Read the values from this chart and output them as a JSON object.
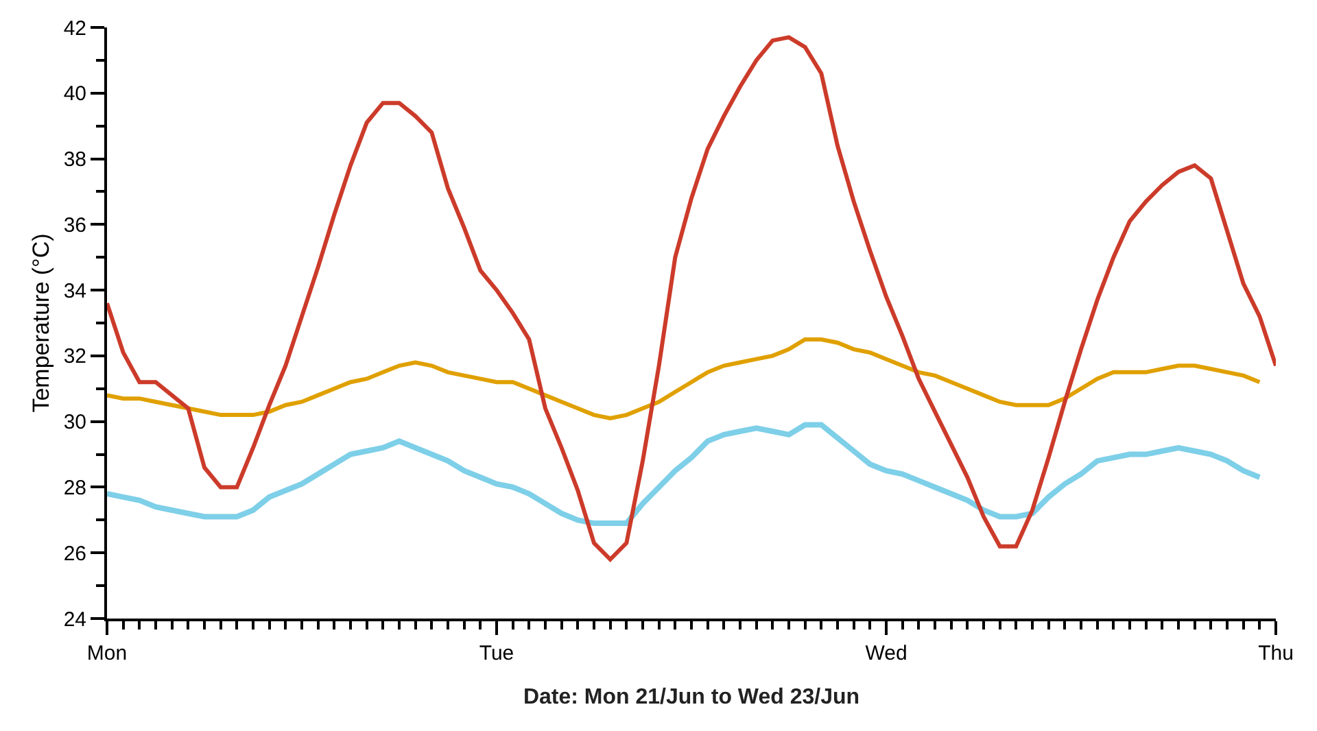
{
  "chart_data": {
    "type": "line",
    "xlabel": "Date: Mon 21/Jun to Wed 23/Jun",
    "ylabel": "Temperature (°C)",
    "categories": [
      "Mon",
      null,
      null,
      null,
      null,
      null,
      null,
      null,
      null,
      null,
      null,
      null,
      null,
      null,
      null,
      null,
      null,
      null,
      null,
      null,
      null,
      null,
      null,
      null,
      "Tue",
      null,
      null,
      null,
      null,
      null,
      null,
      null,
      null,
      null,
      null,
      null,
      null,
      null,
      null,
      null,
      null,
      null,
      null,
      null,
      null,
      null,
      null,
      null,
      "Wed",
      null,
      null,
      null,
      null,
      null,
      null,
      null,
      null,
      null,
      null,
      null,
      null,
      null,
      null,
      null,
      null,
      null,
      null,
      null,
      null,
      null,
      null,
      null,
      "Thu"
    ],
    "ylim": [
      24,
      42
    ],
    "yticks": [
      24,
      {
        "value": 25,
        "label": null
      },
      26,
      {
        "value": 27,
        "label": null
      },
      28,
      {
        "value": 29,
        "label": null
      },
      30,
      {
        "value": 31,
        "label": null
      },
      32,
      {
        "value": 33,
        "label": null
      },
      34,
      {
        "value": 35,
        "label": null
      },
      36,
      {
        "value": 37,
        "label": null
      },
      38,
      {
        "value": 39,
        "label": null
      },
      40,
      {
        "value": 41,
        "label": null
      },
      42
    ],
    "grid": false,
    "marker": "none",
    "line_style": "solid",
    "series": [
      {
        "color": "#e0a000",
        "values": [
          30.8,
          30.7,
          30.7,
          30.6,
          30.5,
          30.4,
          30.3,
          30.2,
          30.2,
          30.2,
          30.3,
          30.5,
          30.6,
          30.8,
          31.0,
          31.2,
          31.3,
          31.5,
          31.7,
          31.8,
          31.7,
          31.5,
          31.4,
          31.3,
          31.2,
          31.2,
          31.0,
          30.8,
          30.6,
          30.4,
          30.2,
          30.1,
          30.2,
          30.4,
          30.6,
          30.9,
          31.2,
          31.5,
          31.7,
          31.8,
          31.9,
          32.0,
          32.2,
          32.5,
          32.5,
          32.4,
          32.2,
          32.1,
          31.9,
          31.7,
          31.5,
          31.4,
          31.2,
          31.0,
          30.8,
          30.6,
          30.5,
          30.5,
          30.5,
          30.7,
          31.0,
          31.3,
          31.5,
          31.5,
          31.5,
          31.6,
          31.7,
          31.7,
          31.6,
          31.5,
          31.4,
          31.2,
          null
        ]
      },
      {
        "color": "#7ecfe8",
        "values": [
          27.8,
          27.7,
          27.6,
          27.4,
          27.3,
          27.2,
          27.1,
          27.1,
          27.1,
          27.3,
          27.7,
          27.9,
          28.1,
          28.4,
          28.7,
          29.0,
          29.1,
          29.2,
          29.4,
          29.2,
          29.0,
          28.8,
          28.5,
          28.3,
          28.1,
          28.0,
          27.8,
          27.5,
          27.2,
          27.0,
          26.9,
          26.9,
          26.9,
          27.5,
          28.0,
          28.5,
          28.9,
          29.4,
          29.6,
          29.7,
          29.8,
          29.7,
          29.6,
          29.9,
          29.9,
          29.5,
          29.1,
          28.7,
          28.5,
          28.4,
          28.2,
          28.0,
          27.8,
          27.6,
          27.3,
          27.1,
          27.1,
          27.2,
          27.7,
          28.1,
          28.4,
          28.8,
          28.9,
          29.0,
          29.0,
          29.1,
          29.2,
          29.1,
          29.0,
          28.8,
          28.5,
          28.3,
          null
        ]
      },
      {
        "color": "#cc3b2a",
        "values": [
          33.6,
          32.1,
          31.2,
          31.2,
          30.8,
          30.4,
          28.6,
          28.0,
          28.0,
          29.2,
          30.5,
          31.7,
          33.2,
          34.7,
          36.3,
          37.8,
          39.1,
          39.7,
          39.7,
          39.3,
          38.8,
          37.1,
          35.9,
          34.6,
          34.0,
          33.3,
          32.5,
          30.4,
          29.2,
          27.9,
          26.3,
          25.8,
          26.3,
          28.8,
          31.7,
          35.0,
          36.8,
          38.3,
          39.3,
          40.2,
          41.0,
          41.6,
          41.7,
          41.4,
          40.6,
          38.4,
          36.7,
          35.2,
          33.8,
          32.6,
          31.3,
          30.3,
          29.3,
          28.3,
          27.1,
          26.2,
          26.2,
          27.3,
          28.9,
          30.6,
          32.2,
          33.7,
          35.0,
          36.1,
          36.7,
          37.2,
          37.6,
          37.8,
          37.4,
          35.8,
          34.2,
          33.2,
          31.7
        ]
      }
    ]
  }
}
